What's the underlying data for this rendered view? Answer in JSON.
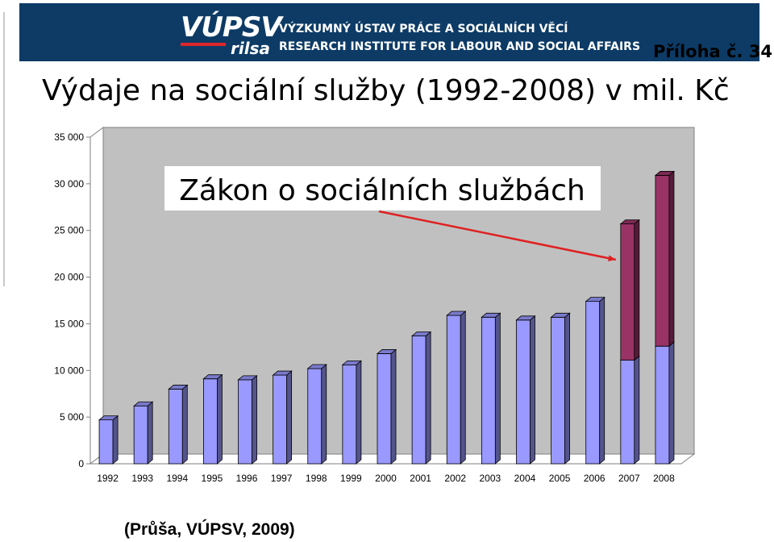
{
  "header": {
    "logo_text": "VÚPSV",
    "logo_sub": "rilsa",
    "institute_cz": "VÝZKUMNÝ ÚSTAV PRÁCE A SOCIÁLNÍCH VĚCÍ",
    "institute_en": "RESEARCH INSTITUTE FOR LABOUR AND SOCIAL AFFAIRS",
    "appendix": "Příloha č. 34"
  },
  "title": "Výdaje na sociální služby (1992-2008) v mil. Kč",
  "source": "(Průša, VÚPSV, 2009)",
  "colors": {
    "banner": "#0d3b66",
    "bar_blue": "#9999ff",
    "bar_purple": "#993366",
    "plot_bg": "#c0c0c0",
    "arrow": "#e02020"
  },
  "chart_data": {
    "type": "bar",
    "stacked": true,
    "title": "",
    "xlabel": "",
    "ylabel": "",
    "ylim": [
      0,
      35000
    ],
    "yticks": [
      "0",
      "5 000",
      "10 000",
      "15 000",
      "20 000",
      "25 000",
      "30 000",
      "35 000"
    ],
    "ytick_values": [
      0,
      5000,
      10000,
      15000,
      20000,
      25000,
      30000,
      35000
    ],
    "grid": false,
    "legend": "none",
    "categories": [
      "1992",
      "1993",
      "1994",
      "1995",
      "1996",
      "1997",
      "1998",
      "1999",
      "2000",
      "2001",
      "2002",
      "2003",
      "2004",
      "2005",
      "2006",
      "2007",
      "2008"
    ],
    "series": [
      {
        "color": "#9999ff",
        "values": [
          4700,
          6200,
          8000,
          9100,
          9000,
          9500,
          10200,
          10600,
          11800,
          13700,
          15900,
          15700,
          15400,
          15700,
          17400,
          11100,
          12600
        ]
      },
      {
        "color": "#993366",
        "values": [
          0,
          0,
          0,
          0,
          0,
          0,
          0,
          0,
          0,
          0,
          0,
          0,
          0,
          0,
          0,
          14600,
          18300
        ]
      }
    ],
    "annotation": {
      "text": "Zákon o sociálních službách",
      "points_to": "2007"
    }
  }
}
